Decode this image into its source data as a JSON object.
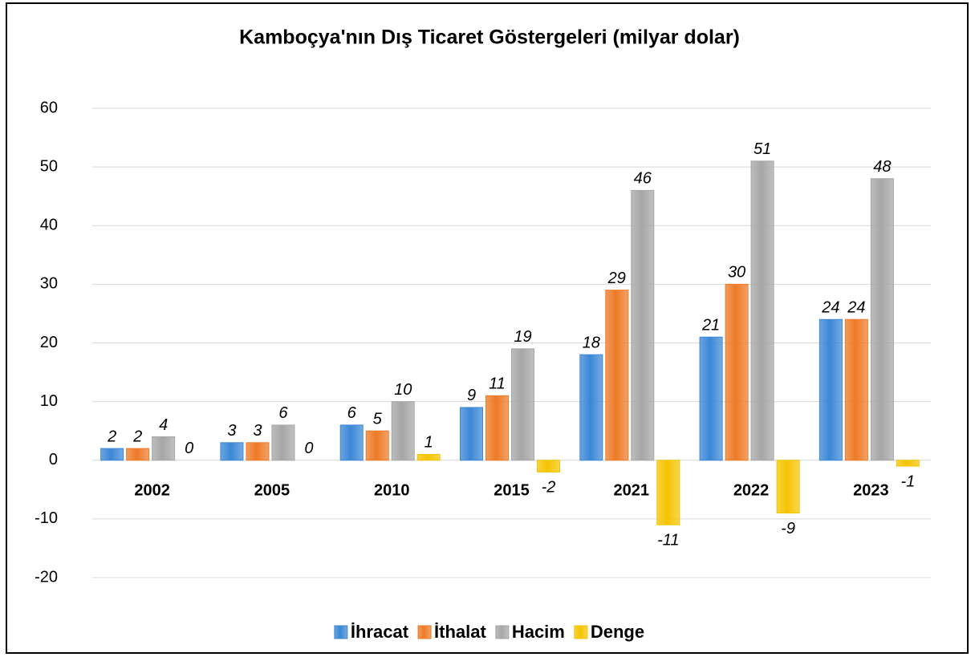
{
  "chart_data": {
    "type": "bar",
    "title": "Kamboçya'nın Dış Ticaret Göstergeleri  (milyar dolar)",
    "categories": [
      "2002",
      "2005",
      "2010",
      "2015",
      "2021",
      "2022",
      "2023"
    ],
    "series": [
      {
        "name": "İhracat",
        "color": "#3b87d6",
        "values": [
          2,
          3,
          6,
          9,
          18,
          21,
          24
        ]
      },
      {
        "name": "İthalat",
        "color": "#ee7a26",
        "values": [
          2,
          3,
          5,
          11,
          29,
          30,
          24
        ]
      },
      {
        "name": "Hacim",
        "color": "#a6a6a6",
        "values": [
          4,
          6,
          10,
          19,
          46,
          51,
          48
        ]
      },
      {
        "name": "Denge",
        "color": "#f5c400",
        "values": [
          0,
          0,
          1,
          -2,
          -11,
          -9,
          -1
        ]
      }
    ],
    "ylim": [
      -20,
      60
    ],
    "yticks": [
      -20,
      -10,
      0,
      10,
      20,
      30,
      40,
      50,
      60
    ],
    "grid": true,
    "legend": "bottom"
  }
}
